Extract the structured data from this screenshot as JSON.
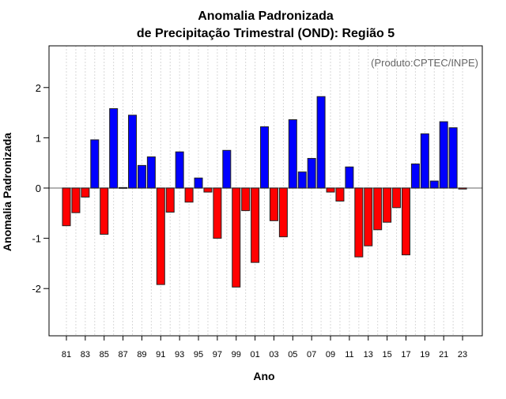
{
  "chart_data": {
    "type": "bar",
    "title_line1": "Anomalia Padronizada",
    "title_line2": "de Precipitação Trimestral (OND): Região 5",
    "annotation": "(Produto:CPTEC/INPE)",
    "xlabel": "Ano",
    "ylabel": "Anomalia Padronizada",
    "ylim": [
      -2.94,
      2.83
    ],
    "yticks": [
      -2,
      -1,
      0,
      1,
      2
    ],
    "ytick_labels": [
      "-2",
      "-1",
      "0",
      "1",
      "2"
    ],
    "xtick_labels": [
      "81",
      "83",
      "85",
      "87",
      "89",
      "91",
      "93",
      "95",
      "97",
      "99",
      "01",
      "03",
      "05",
      "07",
      "09",
      "11",
      "13",
      "15",
      "17",
      "19",
      "21",
      "23"
    ],
    "grid": "vertical dotted",
    "positive_color": "#0000ff",
    "negative_color": "#ff0000",
    "categories": [
      "1981",
      "1982",
      "1983",
      "1984",
      "1985",
      "1986",
      "1987",
      "1988",
      "1989",
      "1990",
      "1991",
      "1992",
      "1993",
      "1994",
      "1995",
      "1996",
      "1997",
      "1998",
      "1999",
      "2000",
      "2001",
      "2002",
      "2003",
      "2004",
      "2005",
      "2006",
      "2007",
      "2008",
      "2009",
      "2010",
      "2011",
      "2012",
      "2013",
      "2014",
      "2015",
      "2016",
      "2017",
      "2018",
      "2019",
      "2020",
      "2021",
      "2022",
      "2023"
    ],
    "values": [
      -0.75,
      -0.49,
      -0.18,
      0.96,
      -0.92,
      1.58,
      0.01,
      1.45,
      0.45,
      0.62,
      -1.92,
      -0.48,
      0.72,
      -0.28,
      0.2,
      -0.08,
      -1.0,
      0.75,
      -1.97,
      -0.45,
      -1.48,
      1.22,
      -0.65,
      -0.97,
      1.36,
      0.32,
      0.59,
      1.82,
      -0.08,
      -0.26,
      0.42,
      -1.37,
      -1.15,
      -0.83,
      -0.68,
      -0.39,
      -1.33,
      0.48,
      1.08,
      0.14,
      1.32,
      1.2,
      -0.02
    ]
  }
}
